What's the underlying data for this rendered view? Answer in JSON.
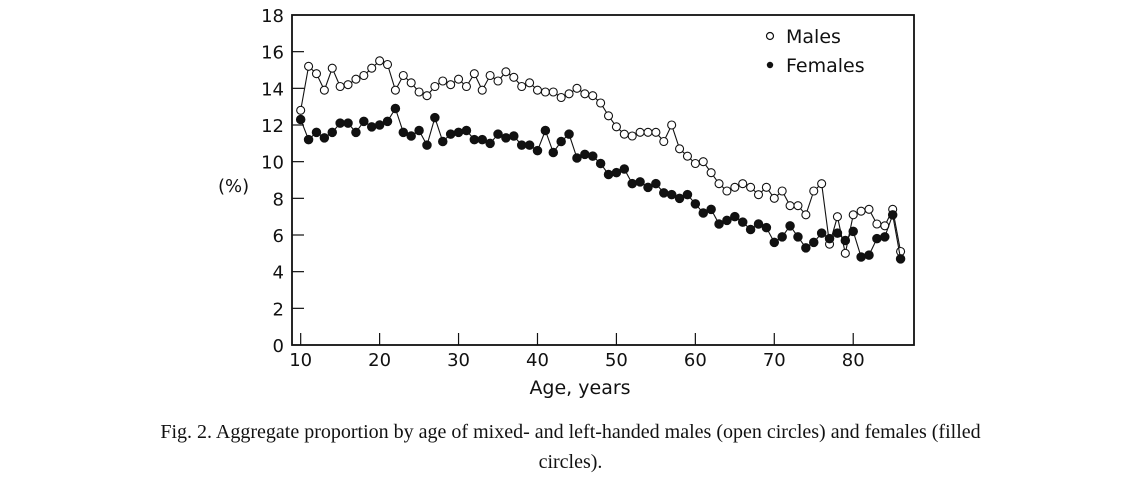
{
  "chart_data": {
    "type": "line",
    "title": "",
    "xlabel": "Age, years",
    "ylabel": "(%)",
    "xlim": [
      8.9,
      87.7
    ],
    "ylim": [
      0,
      18
    ],
    "xticks": [
      10,
      20,
      30,
      40,
      50,
      60,
      70,
      80
    ],
    "yticks": [
      0,
      2,
      4,
      6,
      8,
      10,
      12,
      14,
      16,
      18
    ],
    "grid": false,
    "legend_position": "top-right",
    "x": [
      10,
      11,
      12,
      13,
      14,
      15,
      16,
      17,
      18,
      19,
      20,
      21,
      22,
      23,
      24,
      25,
      26,
      27,
      28,
      29,
      30,
      31,
      32,
      33,
      34,
      35,
      36,
      37,
      38,
      39,
      40,
      41,
      42,
      43,
      44,
      45,
      46,
      47,
      48,
      49,
      50,
      51,
      52,
      53,
      54,
      55,
      56,
      57,
      58,
      59,
      60,
      61,
      62,
      63,
      64,
      65,
      66,
      67,
      68,
      69,
      70,
      71,
      72,
      73,
      74,
      75,
      76,
      77,
      78,
      79,
      80,
      81,
      82,
      83,
      84,
      85,
      86
    ],
    "series": [
      {
        "name": "Males",
        "marker": "open-circle",
        "values": [
          12.8,
          15.2,
          14.8,
          13.9,
          15.1,
          14.1,
          14.2,
          14.5,
          14.7,
          15.1,
          15.5,
          15.3,
          13.9,
          14.7,
          14.3,
          13.8,
          13.6,
          14.1,
          14.4,
          14.2,
          14.5,
          14.1,
          14.8,
          13.9,
          14.7,
          14.4,
          14.9,
          14.6,
          14.1,
          14.3,
          13.9,
          13.8,
          13.8,
          13.5,
          13.7,
          14.0,
          13.7,
          13.6,
          13.2,
          12.5,
          11.9,
          11.5,
          11.4,
          11.6,
          11.6,
          11.6,
          11.1,
          12.0,
          10.7,
          10.3,
          9.9,
          10.0,
          9.4,
          8.8,
          8.4,
          8.6,
          8.8,
          8.6,
          8.2,
          8.6,
          8.0,
          8.4,
          7.6,
          7.6,
          7.1,
          8.4,
          8.8,
          5.5,
          7.0,
          5.0,
          7.1,
          7.3,
          7.4,
          6.6,
          6.5,
          7.4,
          5.1
        ]
      },
      {
        "name": "Females",
        "marker": "filled-circle",
        "values": [
          12.3,
          11.2,
          11.6,
          11.3,
          11.6,
          12.1,
          12.1,
          11.6,
          12.2,
          11.9,
          12.0,
          12.2,
          12.9,
          11.6,
          11.4,
          11.7,
          10.9,
          12.4,
          11.1,
          11.5,
          11.6,
          11.7,
          11.2,
          11.2,
          11.0,
          11.5,
          11.3,
          11.4,
          10.9,
          10.9,
          10.6,
          11.7,
          10.5,
          11.1,
          11.5,
          10.2,
          10.4,
          10.3,
          9.9,
          9.3,
          9.4,
          9.6,
          8.8,
          8.9,
          8.6,
          8.8,
          8.3,
          8.2,
          8.0,
          8.2,
          7.7,
          7.2,
          7.4,
          6.6,
          6.8,
          7.0,
          6.7,
          6.3,
          6.6,
          6.4,
          5.6,
          5.9,
          6.5,
          5.9,
          5.3,
          5.6,
          6.1,
          5.8,
          6.1,
          5.7,
          6.2,
          4.8,
          4.9,
          5.8,
          5.9,
          7.1,
          4.7
        ]
      }
    ]
  },
  "caption": {
    "line1": "Fig. 2. Aggregate proportion by age of mixed- and left-handed males (open circles) and females (filled",
    "line2": "circles)."
  }
}
